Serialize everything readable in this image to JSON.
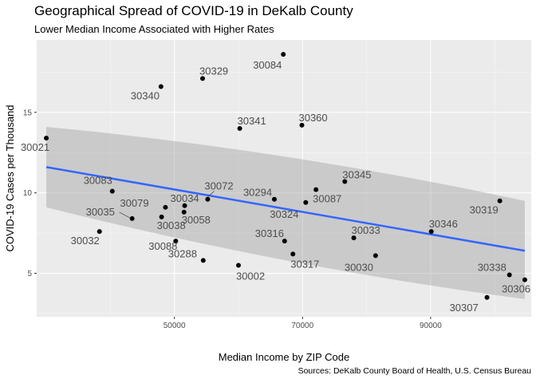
{
  "chart_data": {
    "type": "scatter",
    "title": "Geographical Spread of COVID-19 in DeKalb County",
    "subtitle": "Lower Median Income Associated with Higher Rates",
    "xlabel": "Median Income by ZIP Code",
    "ylabel": "COVID-19 Cases per Thousand",
    "caption": "Sources: DeKalb County Board of Health, U.S. Census Bureau",
    "xlim": [
      28500,
      105700
    ],
    "ylim": [
      2.3,
      19.5
    ],
    "x_ticks": [
      50000,
      70000,
      90000
    ],
    "x_tick_labels": [
      "50000",
      "70000",
      "90000"
    ],
    "y_ticks": [
      5,
      10,
      15
    ],
    "y_tick_labels": [
      "5",
      "10",
      "15"
    ],
    "grid": true,
    "background": "#ebebeb",
    "point_color": "#000000",
    "trend_color": "#3366ff",
    "band_color": "#999999",
    "trend": {
      "method": "linear",
      "x": [
        30000,
        104700
      ],
      "y": [
        11.6,
        6.4
      ],
      "upper": [
        14.1,
        9.5
      ],
      "lower": [
        9.1,
        3.4
      ]
    },
    "points": [
      {
        "zip": "30021",
        "x": 30000,
        "y": 13.4
      },
      {
        "zip": "30032",
        "x": 38300,
        "y": 7.6
      },
      {
        "zip": "30083",
        "x": 40300,
        "y": 10.1
      },
      {
        "zip": "30035",
        "x": 43400,
        "y": 8.4
      },
      {
        "zip": "30038",
        "x": 48000,
        "y": 8.5
      },
      {
        "zip": "30079",
        "x": 48600,
        "y": 9.1
      },
      {
        "zip": "30088",
        "x": 50200,
        "y": 7.0
      },
      {
        "zip": "30340",
        "x": 47900,
        "y": 16.6
      },
      {
        "zip": "30058",
        "x": 51500,
        "y": 8.8
      },
      {
        "zip": "30034",
        "x": 51600,
        "y": 9.2
      },
      {
        "zip": "30288",
        "x": 54500,
        "y": 5.8
      },
      {
        "zip": "30329",
        "x": 54400,
        "y": 17.1
      },
      {
        "zip": "30072",
        "x": 55200,
        "y": 9.6
      },
      {
        "zip": "30002",
        "x": 60000,
        "y": 5.5
      },
      {
        "zip": "30341",
        "x": 60200,
        "y": 14.0
      },
      {
        "zip": "30294",
        "x": 65600,
        "y": 9.6
      },
      {
        "zip": "30084",
        "x": 67000,
        "y": 18.6
      },
      {
        "zip": "30316",
        "x": 67200,
        "y": 7.0
      },
      {
        "zip": "30317",
        "x": 68500,
        "y": 6.2
      },
      {
        "zip": "30360",
        "x": 69900,
        "y": 14.2
      },
      {
        "zip": "30324",
        "x": 70500,
        "y": 9.4
      },
      {
        "zip": "30087",
        "x": 72100,
        "y": 10.2
      },
      {
        "zip": "30345",
        "x": 76600,
        "y": 10.7
      },
      {
        "zip": "30033",
        "x": 78000,
        "y": 7.2
      },
      {
        "zip": "30030",
        "x": 81400,
        "y": 6.1
      },
      {
        "zip": "30346",
        "x": 90100,
        "y": 7.6
      },
      {
        "zip": "30307",
        "x": 98800,
        "y": 3.5
      },
      {
        "zip": "30319",
        "x": 100800,
        "y": 9.5
      },
      {
        "zip": "30338",
        "x": 102300,
        "y": 4.9
      },
      {
        "zip": "30306",
        "x": 104700,
        "y": 4.6
      }
    ]
  }
}
